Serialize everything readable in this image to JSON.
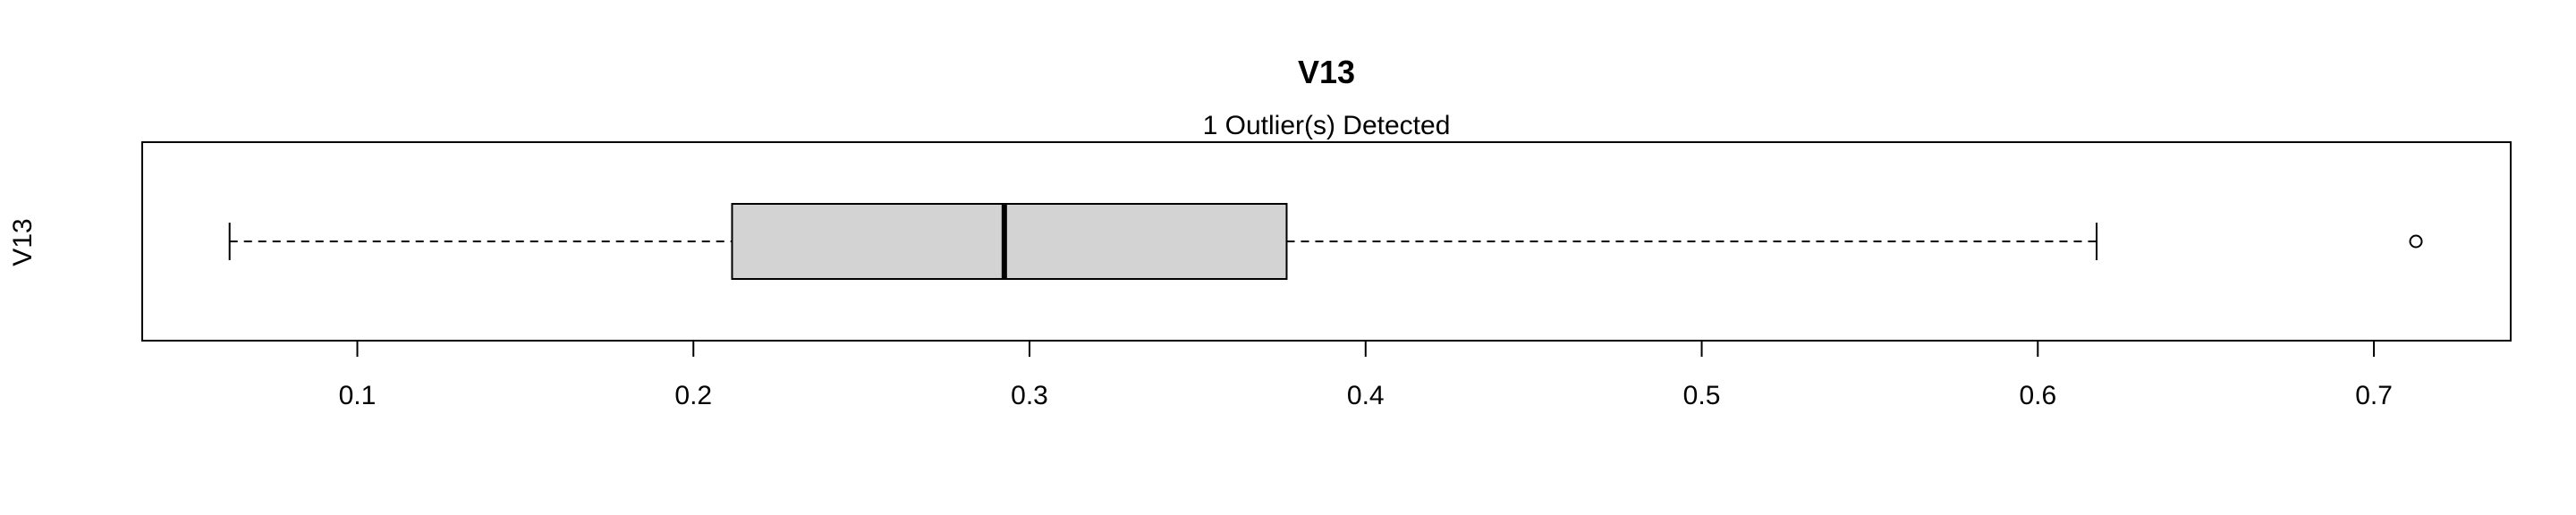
{
  "chart_data": {
    "type": "boxplot",
    "orientation": "horizontal",
    "title": "V13",
    "subtitle": "1 Outlier(s) Detected",
    "ylabel": "V13",
    "xlabel": "",
    "xlim": [
      0.036,
      0.7407
    ],
    "xticks": [
      0.1,
      0.2,
      0.3,
      0.4,
      0.5,
      0.6,
      0.7
    ],
    "xtick_labels": [
      "0.1",
      "0.2",
      "0.3",
      "0.4",
      "0.5",
      "0.6",
      "0.7"
    ],
    "box": {
      "whisker_low": 0.062,
      "q1": 0.2115,
      "median": 0.2925,
      "q3": 0.3765,
      "whisker_high": 0.6175
    },
    "outliers": [
      0.7125
    ],
    "box_color": "#d3d3d3",
    "grid": false
  }
}
